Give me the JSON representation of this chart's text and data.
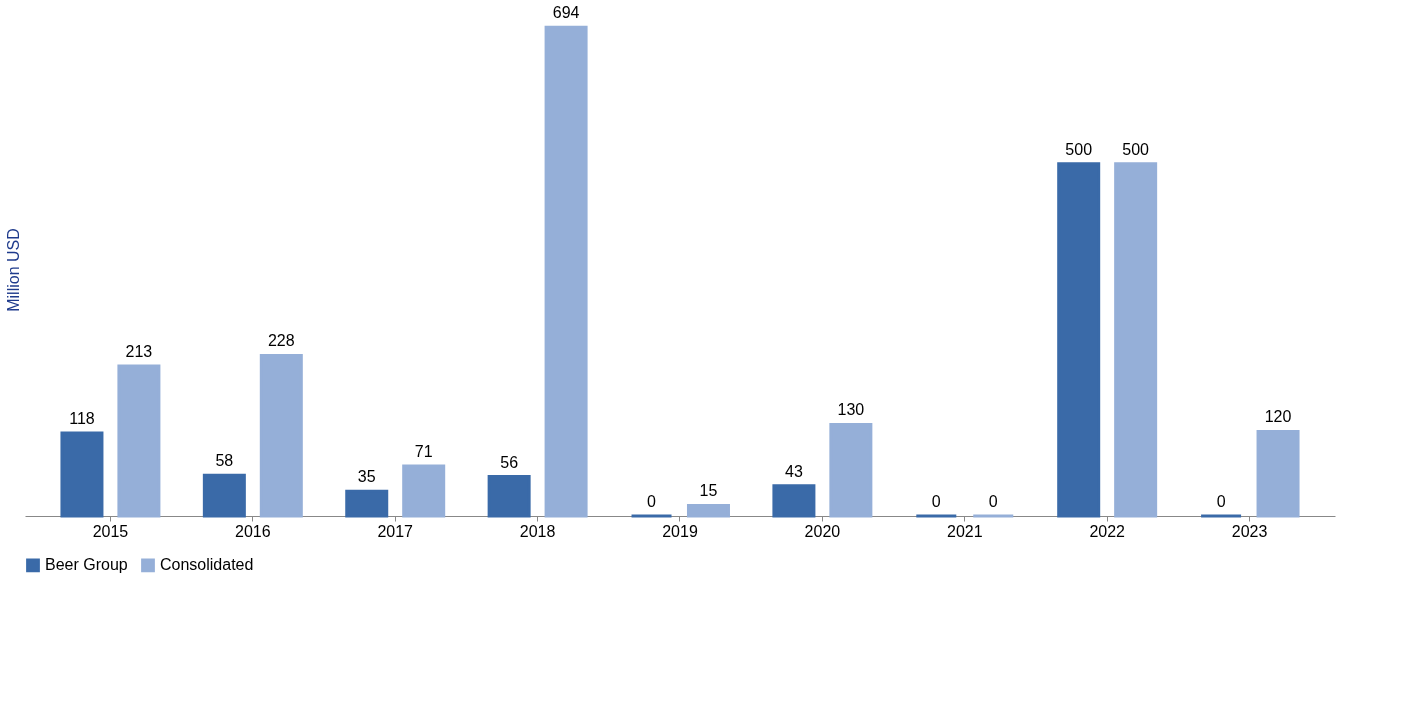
{
  "chart_data": {
    "type": "bar",
    "ylabel": "Million USD",
    "categories": [
      "2015",
      "2016",
      "2017",
      "2018",
      "2019",
      "2020",
      "2021",
      "2022",
      "2023"
    ],
    "series": [
      {
        "name": "Beer Group",
        "color": "#3a6aa8",
        "values": [
          118,
          58,
          35,
          56,
          0,
          43,
          0,
          500,
          0
        ]
      },
      {
        "name": "Consolidated",
        "color": "#95afd8",
        "values": [
          213,
          228,
          71,
          694,
          15,
          130,
          0,
          500,
          120
        ]
      }
    ],
    "data_labels": true,
    "legend": "bottom",
    "grid": false
  }
}
